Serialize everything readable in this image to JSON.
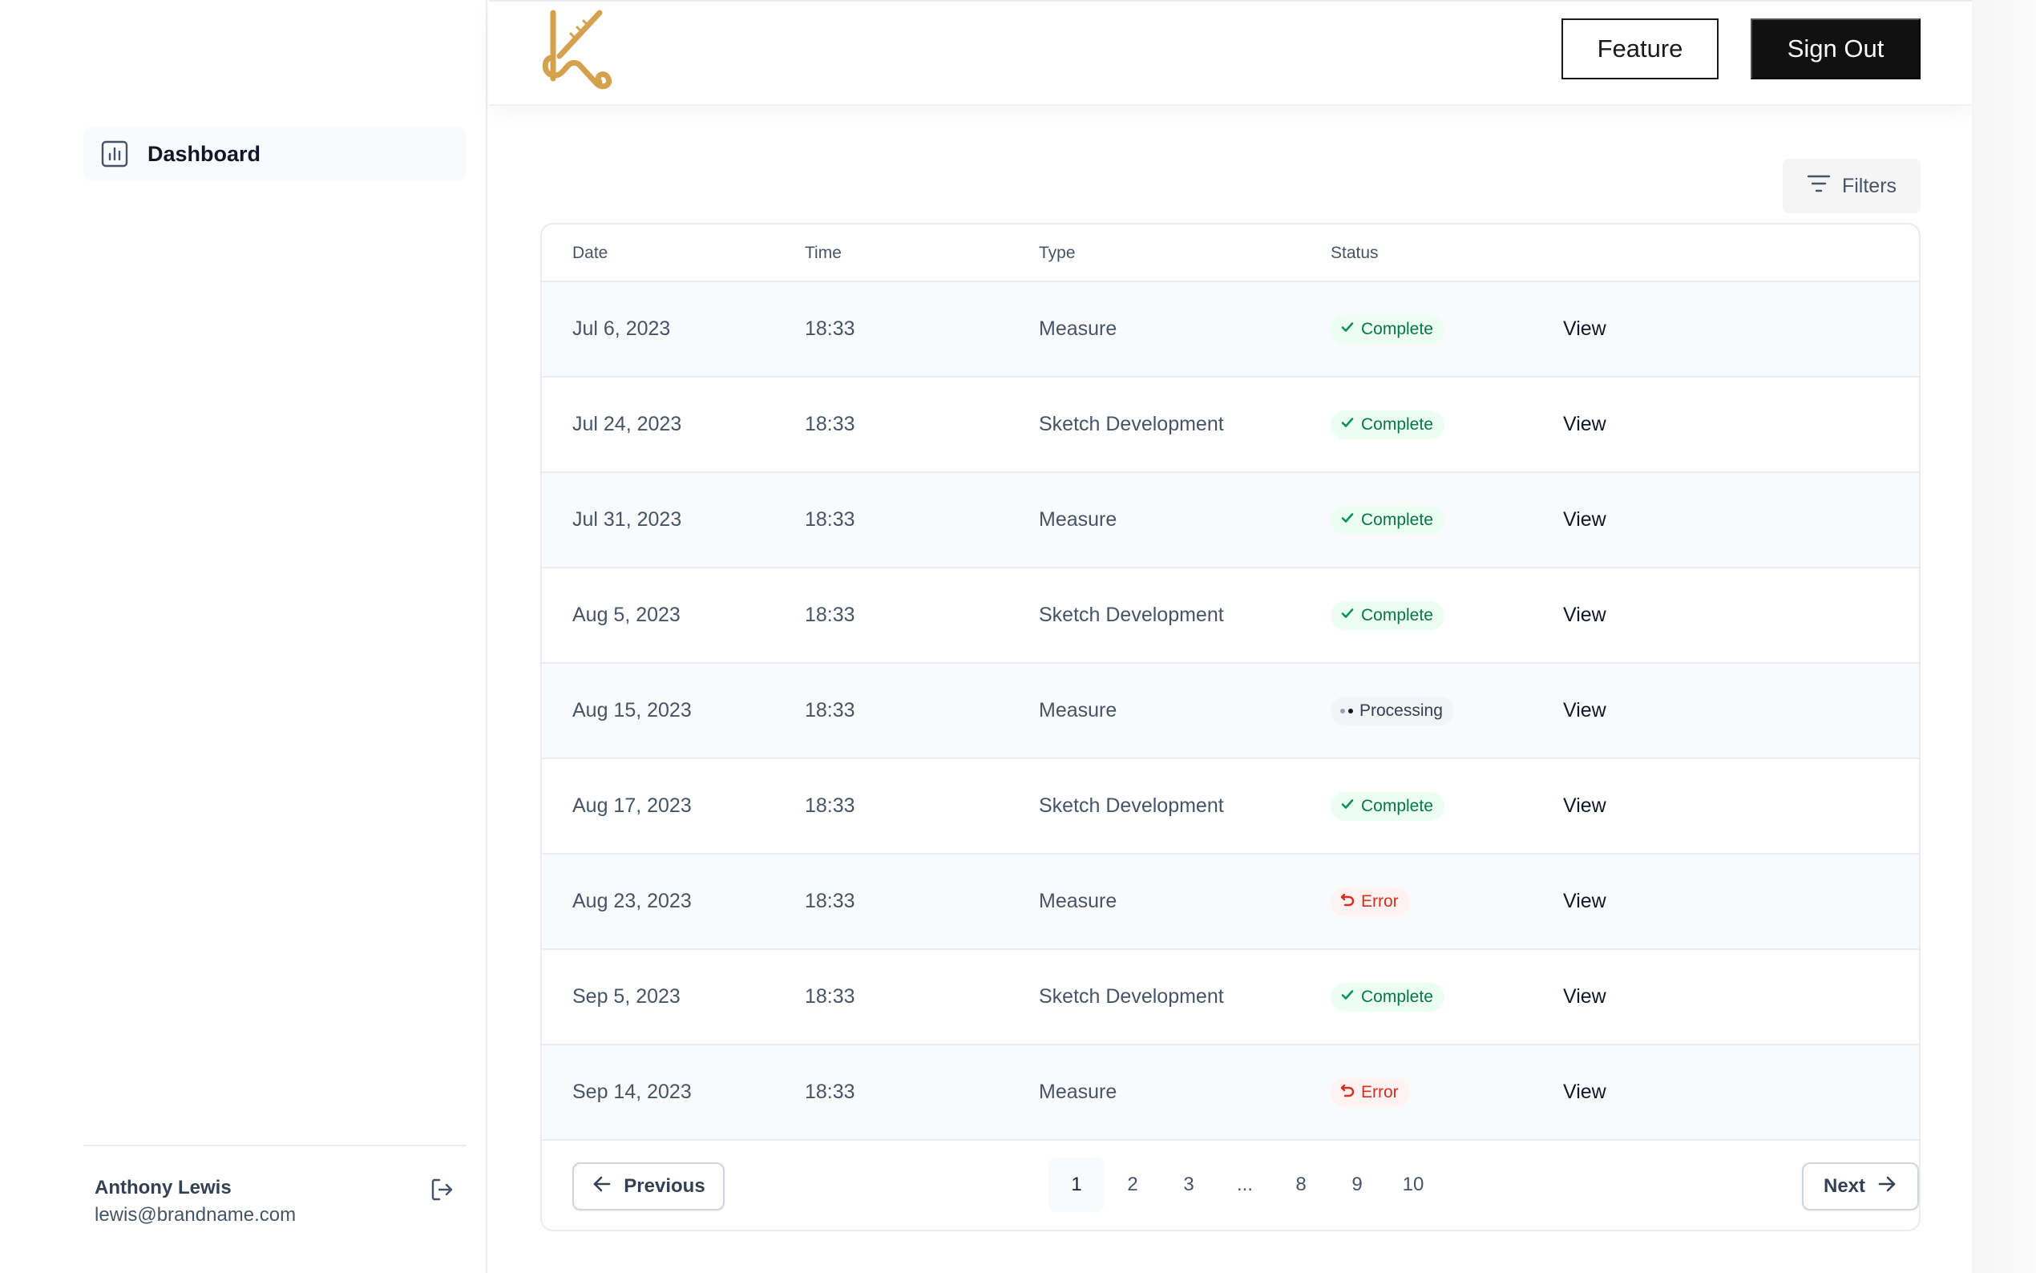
{
  "sidebar": {
    "nav": [
      {
        "label": "Dashboard",
        "icon": "bar-chart-icon"
      }
    ],
    "user": {
      "name": "Anthony Lewis",
      "email": "lewis@brandname.com"
    }
  },
  "header": {
    "feature_label": "Feature",
    "signout_label": "Sign Out",
    "logo_color": "#d4a24c"
  },
  "toolbar": {
    "filters_label": "Filters"
  },
  "table": {
    "columns": [
      "Date",
      "Time",
      "Type",
      "Status",
      ""
    ],
    "rows": [
      {
        "date": "Jul 6, 2023",
        "time": "18:33",
        "type": "Measure",
        "status": "Complete",
        "action": "View"
      },
      {
        "date": "Jul 24, 2023",
        "time": "18:33",
        "type": "Sketch Development",
        "status": "Complete",
        "action": "View"
      },
      {
        "date": "Jul 31, 2023",
        "time": "18:33",
        "type": "Measure",
        "status": "Complete",
        "action": "View"
      },
      {
        "date": "Aug 5, 2023",
        "time": "18:33",
        "type": "Sketch Development",
        "status": "Complete",
        "action": "View"
      },
      {
        "date": "Aug 15, 2023",
        "time": "18:33",
        "type": "Measure",
        "status": "Processing",
        "action": "View"
      },
      {
        "date": "Aug 17, 2023",
        "time": "18:33",
        "type": "Sketch Development",
        "status": "Complete",
        "action": "View"
      },
      {
        "date": "Aug 23, 2023",
        "time": "18:33",
        "type": "Measure",
        "status": "Error",
        "action": "View"
      },
      {
        "date": "Sep 5, 2023",
        "time": "18:33",
        "type": "Sketch Development",
        "status": "Complete",
        "action": "View"
      },
      {
        "date": "Sep 14, 2023",
        "time": "18:33",
        "type": "Measure",
        "status": "Error",
        "action": "View"
      }
    ]
  },
  "pagination": {
    "previous_label": "Previous",
    "next_label": "Next",
    "pages": [
      "1",
      "2",
      "3",
      "...",
      "8",
      "9",
      "10"
    ],
    "current": "1"
  },
  "colors": {
    "complete": "#067647",
    "error": "#d92d20",
    "primary_button": "#111111"
  }
}
